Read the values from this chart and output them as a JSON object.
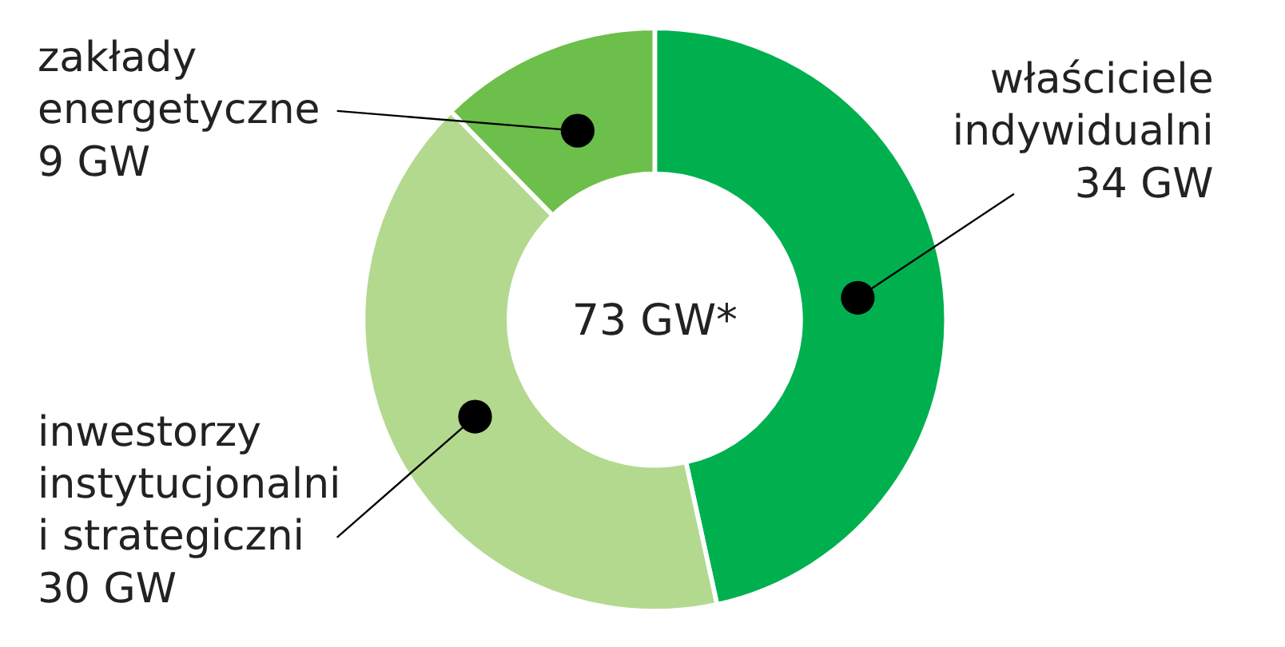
{
  "chart_data": {
    "type": "donut",
    "categories": [
      "właściciele indywidualni",
      "inwestorzy instytucjonalni i strategiczni",
      "zakłady energetyczne"
    ],
    "values": [
      34,
      30,
      9
    ],
    "colors": [
      "#00b04f",
      "#b3d98f",
      "#6dbf4b"
    ],
    "value_labels": [
      "34 GW",
      "30 GW",
      "9 GW"
    ],
    "annotations": [
      "73 GW*"
    ]
  }
}
